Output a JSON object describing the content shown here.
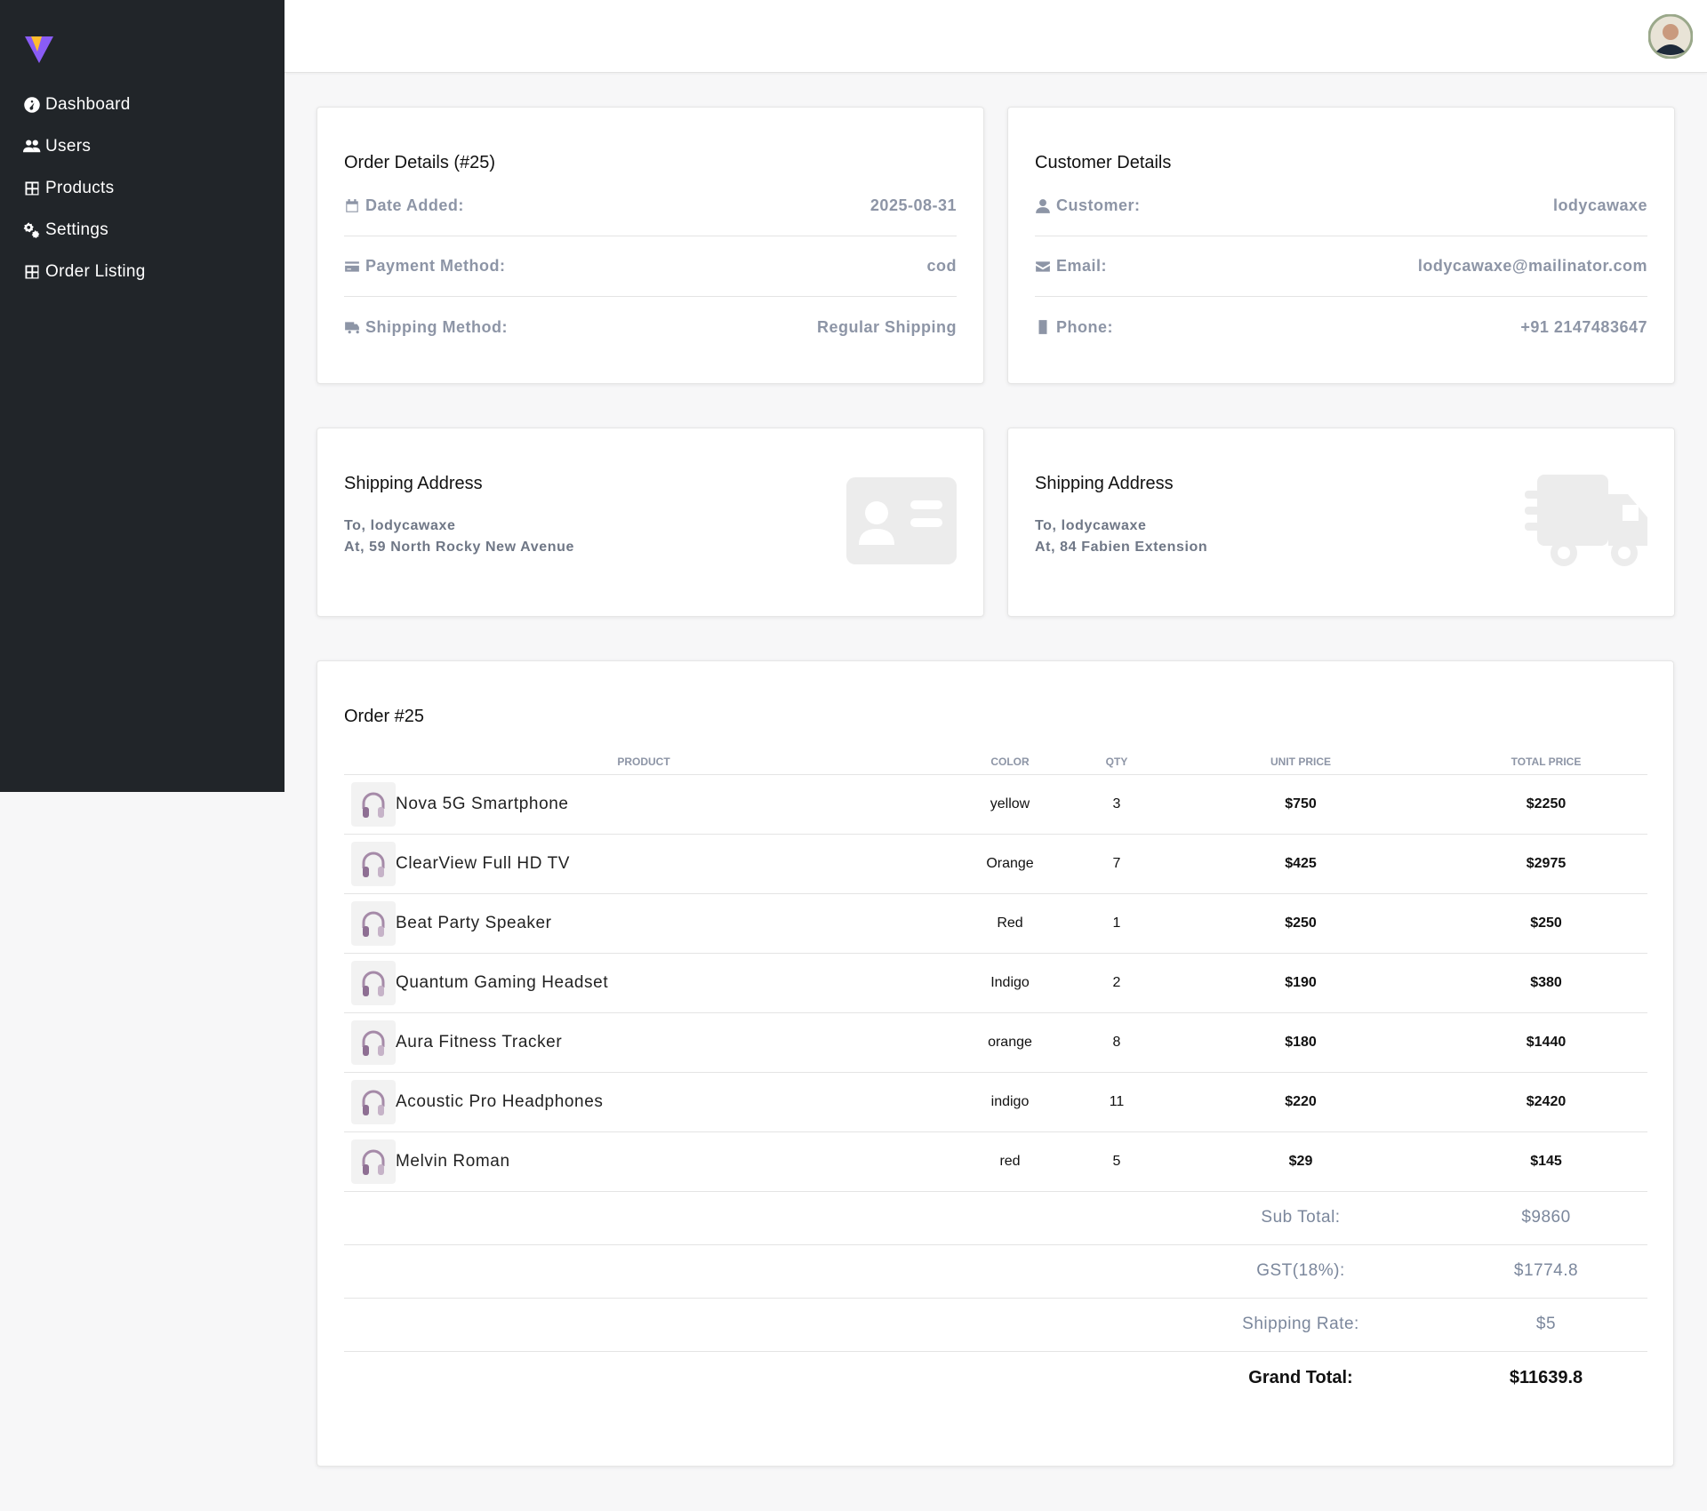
{
  "sidebar": {
    "menu": [
      "Dashboard",
      "Users",
      "Products",
      "Settings",
      "Order Listing"
    ]
  },
  "order_details": {
    "title": "Order Details (#25)",
    "rows": [
      {
        "label": "Date Added:",
        "value": "2025-08-31"
      },
      {
        "label": "Payment Method:",
        "value": "cod"
      },
      {
        "label": "Shipping Method:",
        "value": "Regular Shipping"
      }
    ]
  },
  "customer_details": {
    "title": "Customer Details",
    "rows": [
      {
        "label": "Customer:",
        "value": "lodycawaxe"
      },
      {
        "label": "Email:",
        "value": "lodycawaxe@mailinator.com"
      },
      {
        "label": "Phone:",
        "value": "+91 2147483647"
      }
    ]
  },
  "address_cards": [
    {
      "title": "Shipping Address",
      "lines": [
        "To, lodycawaxe",
        "At, 59 North Rocky New Avenue"
      ]
    },
    {
      "title": "Shipping Address",
      "lines": [
        "To, lodycawaxe",
        "At, 84 Fabien Extension"
      ]
    }
  ],
  "order": {
    "title": "Order #25",
    "columns": [
      "PRODUCT",
      "COLOR",
      "QTY",
      "UNIT PRICE",
      "TOTAL PRICE"
    ],
    "rows": [
      [
        "Nova 5G Smartphone",
        "yellow",
        3,
        "$750",
        "$2250"
      ],
      [
        "ClearView Full HD TV",
        "Orange",
        7,
        "$425",
        "$2975"
      ],
      [
        "Beat Party Speaker",
        "Red",
        1,
        "$250",
        "$250"
      ],
      [
        "Quantum Gaming Headset",
        "Indigo",
        2,
        "$190",
        "$380"
      ],
      [
        "Aura Fitness Tracker",
        "orange",
        8,
        "$180",
        "$1440"
      ],
      [
        "Acoustic Pro Headphones",
        "indigo",
        11,
        "$220",
        "$2420"
      ],
      [
        "Melvin Roman",
        "red",
        5,
        "$29",
        "$145"
      ]
    ],
    "totals": [
      [
        "Sub Total:",
        "$9860"
      ],
      [
        "GST(18%):",
        "$1774.8"
      ],
      [
        "Shipping Rate:",
        "$5"
      ],
      [
        "Grand Total:",
        "$11639.8"
      ]
    ]
  }
}
